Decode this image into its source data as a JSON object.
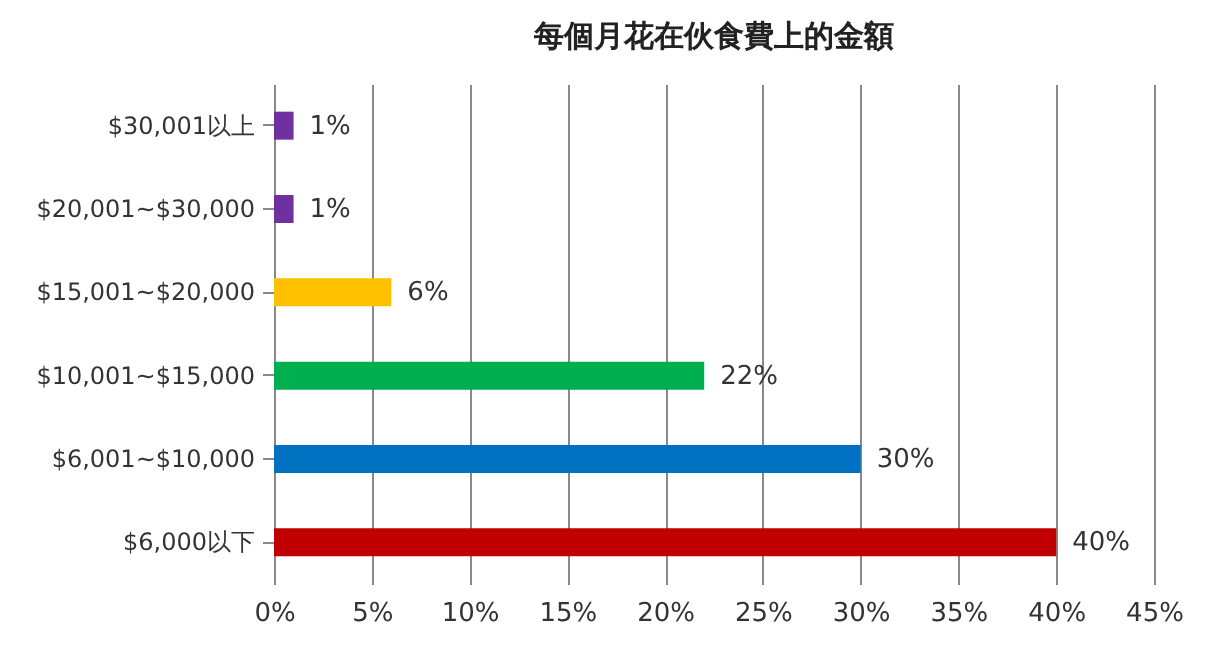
{
  "chart_data": {
    "type": "bar",
    "orientation": "horizontal",
    "title": "每個月花在伙食費上的金額",
    "categories": [
      "$30,001以上",
      "$20,001~$30,000",
      "$15,001~$20,000",
      "$10,001~$15,000",
      "$6,001~$10,000",
      "$6,000以下"
    ],
    "values": [
      1,
      1,
      6,
      22,
      30,
      40
    ],
    "colors": [
      "#7030a0",
      "#7030a0",
      "#ffc000",
      "#00b050",
      "#0070c0",
      "#c00000"
    ],
    "value_labels": [
      "1%",
      "1%",
      "6%",
      "22%",
      "30%",
      "40%"
    ],
    "xlim": [
      0,
      45
    ],
    "xticks": [
      {
        "value": 0,
        "label": "0%"
      },
      {
        "value": 5,
        "label": "5%"
      },
      {
        "value": 10,
        "label": "10%"
      },
      {
        "value": 15,
        "label": "15%"
      },
      {
        "value": 20,
        "label": "20%"
      },
      {
        "value": 25,
        "label": "25%"
      },
      {
        "value": 30,
        "label": "30%"
      },
      {
        "value": 35,
        "label": "35%"
      },
      {
        "value": 40,
        "label": "40%"
      },
      {
        "value": 45,
        "label": "45%"
      }
    ],
    "grid": "x"
  }
}
